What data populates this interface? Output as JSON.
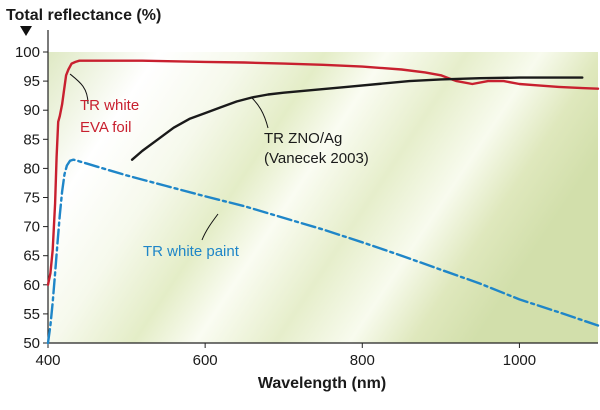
{
  "chart_data": {
    "type": "line",
    "title": "",
    "ylabel": "Total reflectance (%)",
    "xlabel": "Wavelength (nm)",
    "xlim": [
      400,
      1100
    ],
    "ylim": [
      50,
      100
    ],
    "x_ticks": [
      400,
      600,
      800,
      1000
    ],
    "y_ticks": [
      50,
      55,
      60,
      65,
      70,
      75,
      80,
      85,
      90,
      95,
      100
    ],
    "grid": false,
    "background": "diagonal light-green gradient bands",
    "series": [
      {
        "name": "TR white EVA foil",
        "label_lines": [
          "TR white",
          "EVA foil"
        ],
        "color": "#c8202f",
        "dashed": false,
        "x": [
          400,
          403,
          406,
          409,
          411,
          413,
          415,
          418,
          420,
          423,
          426,
          430,
          435,
          440,
          450,
          480,
          520,
          560,
          600,
          650,
          700,
          750,
          800,
          850,
          880,
          900,
          910,
          920,
          940,
          960,
          980,
          1000,
          1020,
          1050,
          1080,
          1100
        ],
        "y": [
          60,
          62,
          66,
          74,
          82,
          88,
          89,
          91,
          93,
          96,
          97,
          98,
          98.3,
          98.5,
          98.5,
          98.5,
          98.5,
          98.4,
          98.3,
          98.2,
          98,
          97.8,
          97.5,
          97,
          96.5,
          96,
          95.5,
          95,
          94.5,
          95,
          95,
          94.5,
          94.3,
          94,
          93.8,
          93.7
        ]
      },
      {
        "name": "TR ZNO/Ag",
        "label_lines": [
          "TR ZNO/Ag",
          "(Vanecek 2003)"
        ],
        "color": "#1a1a1a",
        "dashed": false,
        "x": [
          507,
          520,
          540,
          560,
          580,
          600,
          620,
          640,
          660,
          680,
          700,
          740,
          780,
          820,
          860,
          900,
          950,
          1000,
          1050,
          1080
        ],
        "y": [
          81.5,
          83,
          85,
          87,
          88.5,
          89.5,
          90.5,
          91.5,
          92.2,
          92.7,
          93,
          93.5,
          94,
          94.5,
          95,
          95.3,
          95.5,
          95.6,
          95.6,
          95.6
        ]
      },
      {
        "name": "TR white paint",
        "label_lines": [
          "TR white paint"
        ],
        "color": "#1f86c8",
        "dashed": true,
        "x": [
          400,
          403,
          406,
          409,
          412,
          415,
          418,
          421,
          424,
          428,
          432,
          436,
          440,
          450,
          470,
          500,
          550,
          600,
          650,
          700,
          750,
          800,
          850,
          900,
          950,
          1000,
          1050,
          1100
        ],
        "y": [
          50,
          53,
          57,
          62,
          67,
          72,
          76,
          79,
          80.5,
          81.3,
          81.5,
          81.4,
          81.2,
          80.8,
          80,
          78.8,
          77,
          75.2,
          73.5,
          71.5,
          69.5,
          67.3,
          65,
          62.6,
          60.2,
          57.5,
          55.3,
          53
        ]
      }
    ]
  }
}
